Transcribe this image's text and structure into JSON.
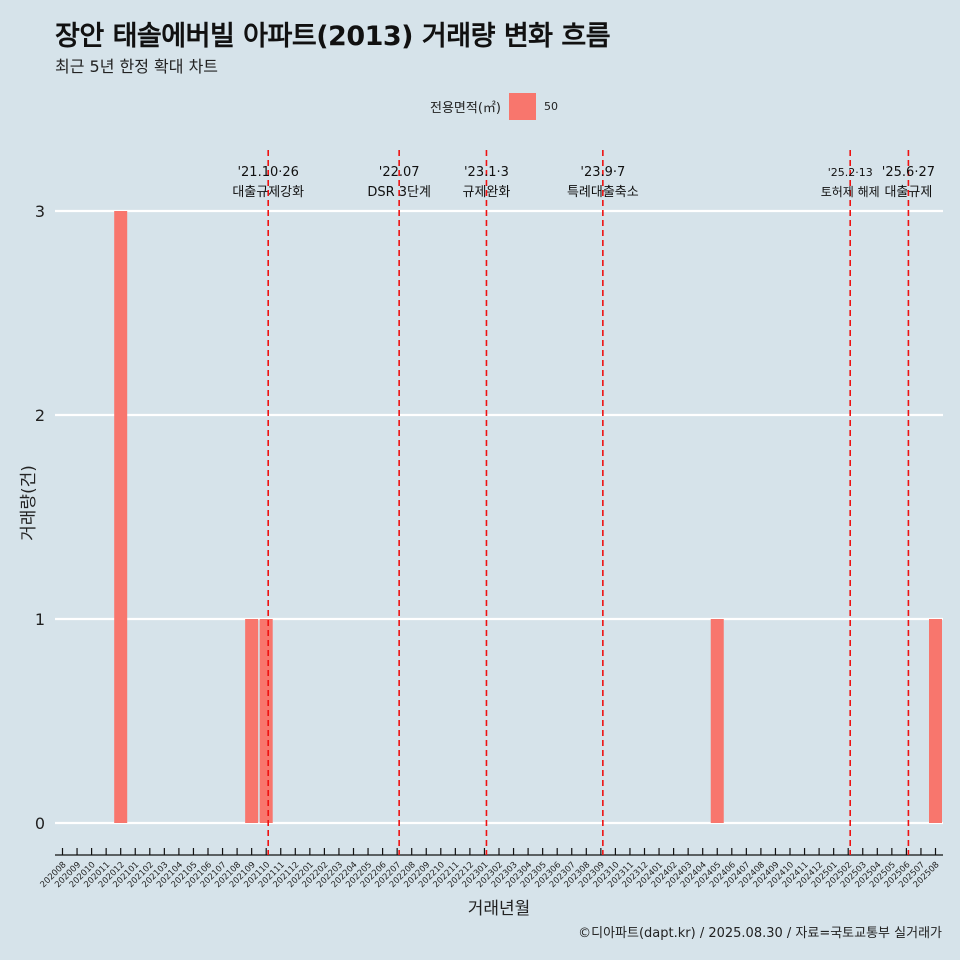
{
  "title": "장안 태솔에버빌 아파트(2013) 거래량 변화 흐름",
  "subtitle": "최근 5년 한정 확대 차트",
  "legend": {
    "title": "전용면적(㎡)",
    "entry": "50",
    "color": "#f8766d"
  },
  "caption": "©디아파트(dapt.kr) / 2025.08.30 / 자료=국토교통부 실거래가",
  "chart_data": {
    "type": "bar",
    "xlabel": "거래년월",
    "ylabel": "거래량(건)",
    "ylim": [
      0,
      3
    ],
    "yticks": [
      0,
      1,
      2,
      3
    ],
    "categories": [
      "202008",
      "202009",
      "202010",
      "202011",
      "202012",
      "202101",
      "202102",
      "202103",
      "202104",
      "202105",
      "202106",
      "202107",
      "202108",
      "202109",
      "202110",
      "202111",
      "202112",
      "202201",
      "202202",
      "202203",
      "202204",
      "202205",
      "202206",
      "202207",
      "202208",
      "202209",
      "202210",
      "202211",
      "202212",
      "202301",
      "202302",
      "202303",
      "202304",
      "202305",
      "202306",
      "202307",
      "202308",
      "202309",
      "202310",
      "202311",
      "202312",
      "202401",
      "202402",
      "202403",
      "202404",
      "202405",
      "202406",
      "202407",
      "202408",
      "202409",
      "202410",
      "202411",
      "202412",
      "202501",
      "202502",
      "202503",
      "202504",
      "202505",
      "202506",
      "202507",
      "202508"
    ],
    "series": [
      {
        "name": "50",
        "values": [
          0,
          0,
          0,
          0,
          3,
          0,
          0,
          0,
          0,
          0,
          0,
          0,
          0,
          1,
          1,
          0,
          0,
          0,
          0,
          0,
          0,
          0,
          0,
          0,
          0,
          0,
          0,
          0,
          0,
          0,
          0,
          0,
          0,
          0,
          0,
          0,
          0,
          0,
          0,
          0,
          0,
          0,
          0,
          0,
          0,
          1,
          0,
          0,
          0,
          0,
          0,
          0,
          0,
          0,
          0,
          0,
          0,
          0,
          0,
          0,
          1
        ]
      }
    ],
    "annotations": [
      {
        "at": "202110",
        "date": "'21.10·26",
        "label": "대출규제강화"
      },
      {
        "at": "202207",
        "date": "'22.07",
        "label": "DSR 3단계"
      },
      {
        "at": "202301",
        "date": "'23.1·3",
        "label": "규제완화"
      },
      {
        "at": "202309",
        "date": "'23.9·7",
        "label": "특례대출축소"
      },
      {
        "at": "202502",
        "date": "'25.2·13",
        "label": "토허제 해제"
      },
      {
        "at": "202506",
        "date": "'25.6·27",
        "label": "대출규제"
      }
    ]
  }
}
